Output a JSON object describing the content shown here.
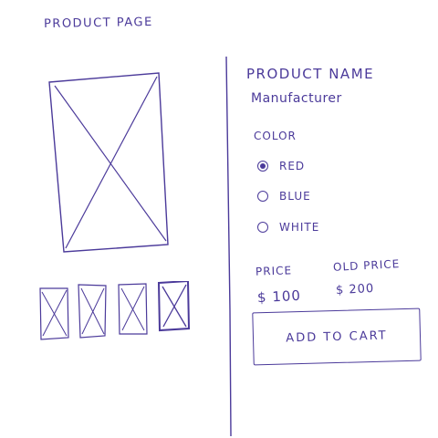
{
  "page": {
    "title": "PRODUCT PAGE"
  },
  "product": {
    "name": "PRODUCT NAME",
    "manufacturer": "Manufacturer"
  },
  "color_selector": {
    "label": "COLOR",
    "options": [
      {
        "label": "RED",
        "selected": true
      },
      {
        "label": "BLUE",
        "selected": false
      },
      {
        "label": "WHITE",
        "selected": false
      }
    ]
  },
  "pricing": {
    "price_label": "PRICE",
    "price_value": "$ 100",
    "old_price_label": "OLD PRICE",
    "old_price_value": "$ 200"
  },
  "actions": {
    "add_to_cart_label": "ADD TO CART"
  },
  "gallery": {
    "thumbnail_count": 4
  },
  "style": {
    "ink_color": "#4b3a9a",
    "background": "#ffffff"
  }
}
